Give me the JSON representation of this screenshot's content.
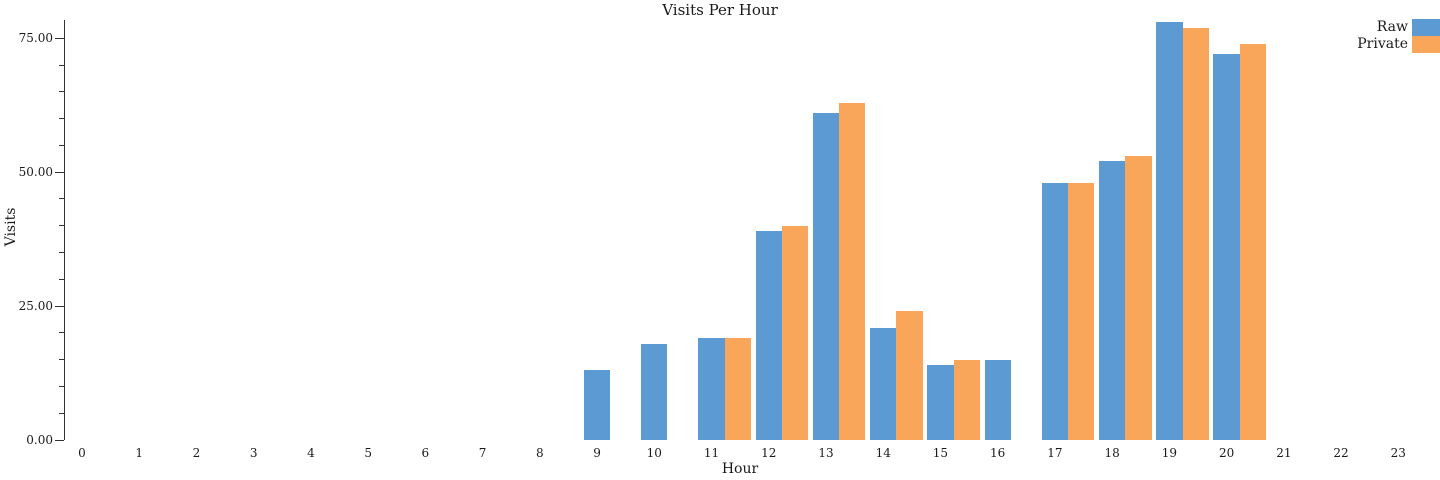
{
  "chart_data": {
    "type": "bar",
    "title": "Visits Per Hour",
    "xlabel": "Hour",
    "ylabel": "Visits",
    "categories": [
      "0",
      "1",
      "2",
      "3",
      "4",
      "5",
      "6",
      "7",
      "8",
      "9",
      "10",
      "11",
      "12",
      "13",
      "14",
      "15",
      "16",
      "17",
      "18",
      "19",
      "20",
      "21",
      "22",
      "23"
    ],
    "series": [
      {
        "name": "Raw",
        "color": "#5b9ad3",
        "values": [
          0,
          0,
          0,
          0,
          0,
          0,
          0,
          0,
          0,
          13,
          18,
          19,
          39,
          61,
          21,
          14,
          15,
          48,
          52,
          78,
          72,
          0,
          0,
          0
        ]
      },
      {
        "name": "Private",
        "color": "#faa65a",
        "values": [
          0,
          0,
          0,
          0,
          0,
          0,
          0,
          0,
          0,
          0,
          0,
          19,
          40,
          63,
          24,
          15,
          0,
          48,
          53,
          77,
          74,
          0,
          0,
          0
        ]
      }
    ],
    "ylim": [
      0,
      78.5
    ],
    "yticks": [
      {
        "value": 0,
        "label": "0.00"
      },
      {
        "value": 25,
        "label": "25.00"
      },
      {
        "value": 50,
        "label": "50.00"
      },
      {
        "value": 75,
        "label": "75.00"
      }
    ],
    "minor_tick_step": 5,
    "grid": false,
    "legend_position": "top-right"
  }
}
